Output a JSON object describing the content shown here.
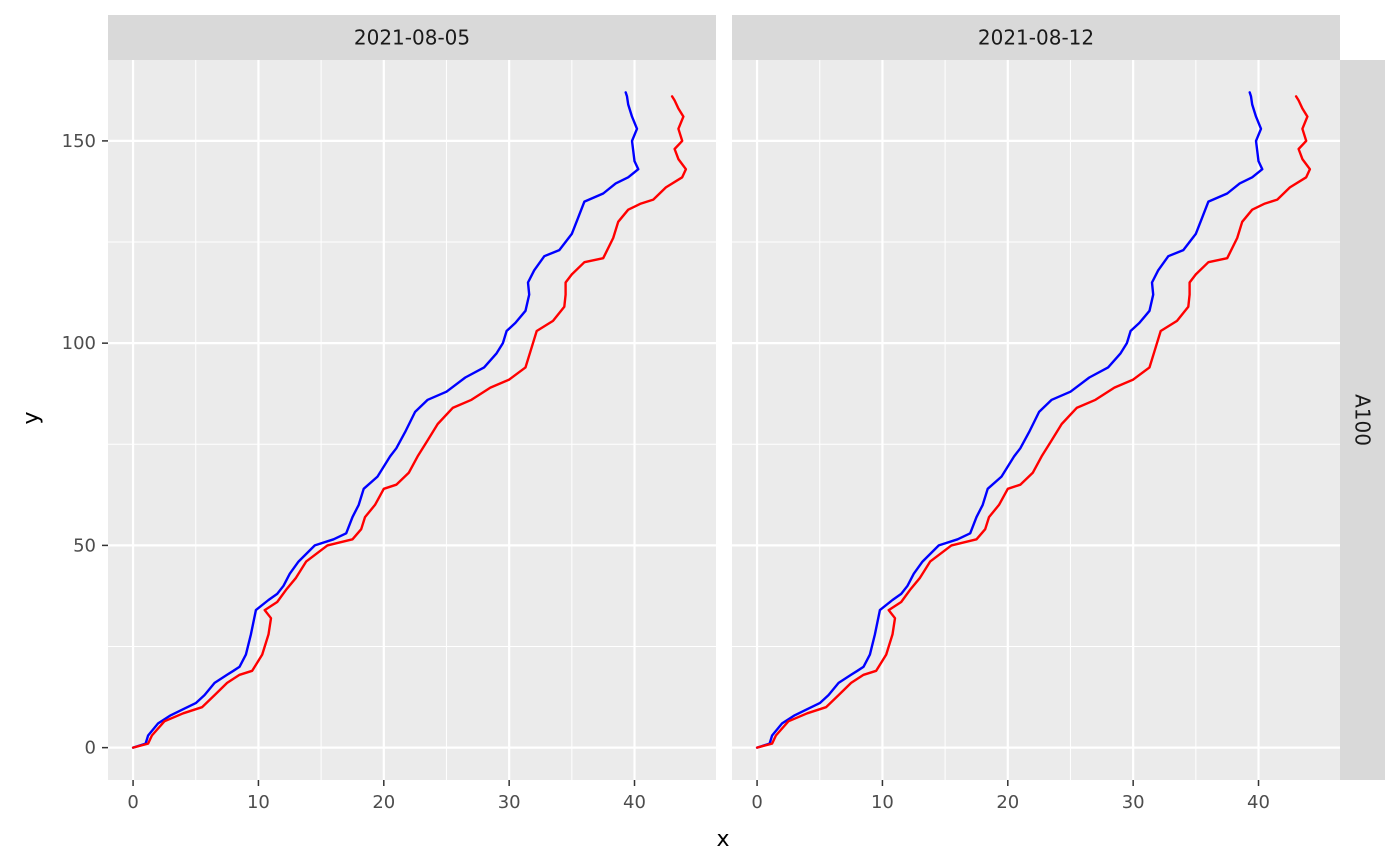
{
  "chart_data": {
    "type": "line",
    "xlabel": "x",
    "ylabel": "y",
    "xlim": [
      -2,
      46.5
    ],
    "ylim": [
      -8,
      170
    ],
    "x_ticks": [
      0,
      10,
      20,
      30,
      40
    ],
    "y_ticks": [
      0,
      50,
      100,
      150
    ],
    "x_tick_labels": [
      "0",
      "10",
      "20",
      "30",
      "40"
    ],
    "y_tick_labels": [
      "0",
      "50",
      "100",
      "150"
    ],
    "row_strip": "A100",
    "grid": true,
    "colors": {
      "panel_bg": "#EBEBEB",
      "strip_bg": "#D9D9D9",
      "grid": "#FFFFFF"
    },
    "panels": [
      {
        "strip": "2021-08-05",
        "series": [
          {
            "color": "#0000FF",
            "points": [
              [
                0,
                0
              ],
              [
                1,
                1
              ],
              [
                1.2,
                3
              ],
              [
                2,
                6
              ],
              [
                3,
                8
              ],
              [
                4,
                9.5
              ],
              [
                5,
                11
              ],
              [
                5.7,
                13
              ],
              [
                6.5,
                16
              ],
              [
                7.5,
                18
              ],
              [
                8,
                19
              ],
              [
                8.5,
                20
              ],
              [
                9,
                23
              ],
              [
                9.4,
                28
              ],
              [
                9.8,
                34
              ],
              [
                10.8,
                36.5
              ],
              [
                11.5,
                38
              ],
              [
                12,
                40
              ],
              [
                12.5,
                43
              ],
              [
                13.2,
                46
              ],
              [
                14.5,
                50
              ],
              [
                16,
                51.5
              ],
              [
                17,
                53
              ],
              [
                17.5,
                57
              ],
              [
                18,
                60
              ],
              [
                18.4,
                64
              ],
              [
                19.5,
                67
              ],
              [
                20.5,
                72
              ],
              [
                21,
                74
              ],
              [
                21.7,
                78
              ],
              [
                22.5,
                83
              ],
              [
                23.5,
                86
              ],
              [
                25,
                88
              ],
              [
                26.5,
                91.5
              ],
              [
                28,
                94
              ],
              [
                29,
                97.5
              ],
              [
                29.5,
                100
              ],
              [
                29.8,
                103
              ],
              [
                30.5,
                105
              ],
              [
                31.3,
                108
              ],
              [
                31.6,
                112
              ],
              [
                31.5,
                115
              ],
              [
                32,
                118
              ],
              [
                32.8,
                121.5
              ],
              [
                34,
                123
              ],
              [
                35,
                127
              ],
              [
                35.5,
                131
              ],
              [
                36,
                135
              ],
              [
                37.5,
                137
              ],
              [
                38.5,
                139.5
              ],
              [
                39.5,
                141
              ],
              [
                40.3,
                143
              ],
              [
                40,
                145
              ],
              [
                39.8,
                150
              ],
              [
                40.2,
                153
              ],
              [
                39.8,
                156
              ],
              [
                39.5,
                159
              ],
              [
                39.4,
                161
              ],
              [
                39.3,
                162
              ]
            ]
          },
          {
            "color": "#FF0000",
            "points": [
              [
                0,
                0
              ],
              [
                1.2,
                1
              ],
              [
                1.5,
                3
              ],
              [
                2.5,
                6.5
              ],
              [
                4,
                8.5
              ],
              [
                5.5,
                10
              ],
              [
                6.5,
                13
              ],
              [
                7.5,
                16
              ],
              [
                8.5,
                18
              ],
              [
                9.5,
                19
              ],
              [
                10.3,
                23
              ],
              [
                10.8,
                28
              ],
              [
                11,
                32
              ],
              [
                10.5,
                34
              ],
              [
                11.5,
                36
              ],
              [
                12.2,
                39
              ],
              [
                13,
                42
              ],
              [
                13.8,
                46
              ],
              [
                15.5,
                50
              ],
              [
                17.5,
                51.5
              ],
              [
                18.2,
                54
              ],
              [
                18.5,
                57
              ],
              [
                19.3,
                60
              ],
              [
                20,
                64
              ],
              [
                21,
                65
              ],
              [
                22,
                68
              ],
              [
                22.7,
                72
              ],
              [
                23.5,
                76
              ],
              [
                24.3,
                80
              ],
              [
                25.5,
                84
              ],
              [
                27,
                86
              ],
              [
                28.5,
                89
              ],
              [
                30,
                91
              ],
              [
                31.3,
                94
              ],
              [
                31.7,
                98
              ],
              [
                32.2,
                103
              ],
              [
                33.5,
                105.5
              ],
              [
                34.4,
                109
              ],
              [
                34.5,
                112
              ],
              [
                34.5,
                115
              ],
              [
                35,
                117
              ],
              [
                36,
                120
              ],
              [
                37.5,
                121
              ],
              [
                38.3,
                126
              ],
              [
                38.7,
                130
              ],
              [
                39.5,
                133
              ],
              [
                40.5,
                134.5
              ],
              [
                41.5,
                135.5
              ],
              [
                42.5,
                138.5
              ],
              [
                43.8,
                141
              ],
              [
                44.1,
                143
              ],
              [
                43.5,
                145.5
              ],
              [
                43.2,
                148
              ],
              [
                43.8,
                150
              ],
              [
                43.5,
                153
              ],
              [
                43.9,
                156
              ],
              [
                43.5,
                158
              ],
              [
                43.2,
                160
              ],
              [
                43,
                161
              ]
            ]
          }
        ]
      },
      {
        "strip": "2021-08-12",
        "series": [
          {
            "color": "#0000FF",
            "points": [
              [
                0,
                0
              ],
              [
                1,
                1
              ],
              [
                1.2,
                3
              ],
              [
                2,
                6
              ],
              [
                3,
                8
              ],
              [
                4,
                9.5
              ],
              [
                5,
                11
              ],
              [
                5.7,
                13
              ],
              [
                6.5,
                16
              ],
              [
                7.5,
                18
              ],
              [
                8,
                19
              ],
              [
                8.5,
                20
              ],
              [
                9,
                23
              ],
              [
                9.4,
                28
              ],
              [
                9.8,
                34
              ],
              [
                10.8,
                36.5
              ],
              [
                11.5,
                38
              ],
              [
                12,
                40
              ],
              [
                12.5,
                43
              ],
              [
                13.2,
                46
              ],
              [
                14.5,
                50
              ],
              [
                16,
                51.5
              ],
              [
                17,
                53
              ],
              [
                17.5,
                57
              ],
              [
                18,
                60
              ],
              [
                18.4,
                64
              ],
              [
                19.5,
                67
              ],
              [
                20.5,
                72
              ],
              [
                21,
                74
              ],
              [
                21.7,
                78
              ],
              [
                22.5,
                83
              ],
              [
                23.5,
                86
              ],
              [
                25,
                88
              ],
              [
                26.5,
                91.5
              ],
              [
                28,
                94
              ],
              [
                29,
                97.5
              ],
              [
                29.5,
                100
              ],
              [
                29.8,
                103
              ],
              [
                30.5,
                105
              ],
              [
                31.3,
                108
              ],
              [
                31.6,
                112
              ],
              [
                31.5,
                115
              ],
              [
                32,
                118
              ],
              [
                32.8,
                121.5
              ],
              [
                34,
                123
              ],
              [
                35,
                127
              ],
              [
                35.5,
                131
              ],
              [
                36,
                135
              ],
              [
                37.5,
                137
              ],
              [
                38.5,
                139.5
              ],
              [
                39.5,
                141
              ],
              [
                40.3,
                143
              ],
              [
                40,
                145
              ],
              [
                39.8,
                150
              ],
              [
                40.2,
                153
              ],
              [
                39.8,
                156
              ],
              [
                39.5,
                159
              ],
              [
                39.4,
                161
              ],
              [
                39.3,
                162
              ]
            ]
          },
          {
            "color": "#FF0000",
            "points": [
              [
                0,
                0
              ],
              [
                1.2,
                1
              ],
              [
                1.5,
                3
              ],
              [
                2.5,
                6.5
              ],
              [
                4,
                8.5
              ],
              [
                5.5,
                10
              ],
              [
                6.5,
                13
              ],
              [
                7.5,
                16
              ],
              [
                8.5,
                18
              ],
              [
                9.5,
                19
              ],
              [
                10.3,
                23
              ],
              [
                10.8,
                28
              ],
              [
                11,
                32
              ],
              [
                10.5,
                34
              ],
              [
                11.5,
                36
              ],
              [
                12.2,
                39
              ],
              [
                13,
                42
              ],
              [
                13.8,
                46
              ],
              [
                15.5,
                50
              ],
              [
                17.5,
                51.5
              ],
              [
                18.2,
                54
              ],
              [
                18.5,
                57
              ],
              [
                19.3,
                60
              ],
              [
                20,
                64
              ],
              [
                21,
                65
              ],
              [
                22,
                68
              ],
              [
                22.7,
                72
              ],
              [
                23.5,
                76
              ],
              [
                24.3,
                80
              ],
              [
                25.5,
                84
              ],
              [
                27,
                86
              ],
              [
                28.5,
                89
              ],
              [
                30,
                91
              ],
              [
                31.3,
                94
              ],
              [
                31.7,
                98
              ],
              [
                32.2,
                103
              ],
              [
                33.5,
                105.5
              ],
              [
                34.4,
                109
              ],
              [
                34.5,
                112
              ],
              [
                34.5,
                115
              ],
              [
                35,
                117
              ],
              [
                36,
                120
              ],
              [
                37.5,
                121
              ],
              [
                38.3,
                126
              ],
              [
                38.7,
                130
              ],
              [
                39.5,
                133
              ],
              [
                40.5,
                134.5
              ],
              [
                41.5,
                135.5
              ],
              [
                42.5,
                138.5
              ],
              [
                43.8,
                141
              ],
              [
                44.1,
                143
              ],
              [
                43.5,
                145.5
              ],
              [
                43.2,
                148
              ],
              [
                43.8,
                150
              ],
              [
                43.5,
                153
              ],
              [
                43.9,
                156
              ],
              [
                43.5,
                158
              ],
              [
                43.2,
                160
              ],
              [
                43,
                161
              ]
            ]
          }
        ]
      }
    ]
  }
}
